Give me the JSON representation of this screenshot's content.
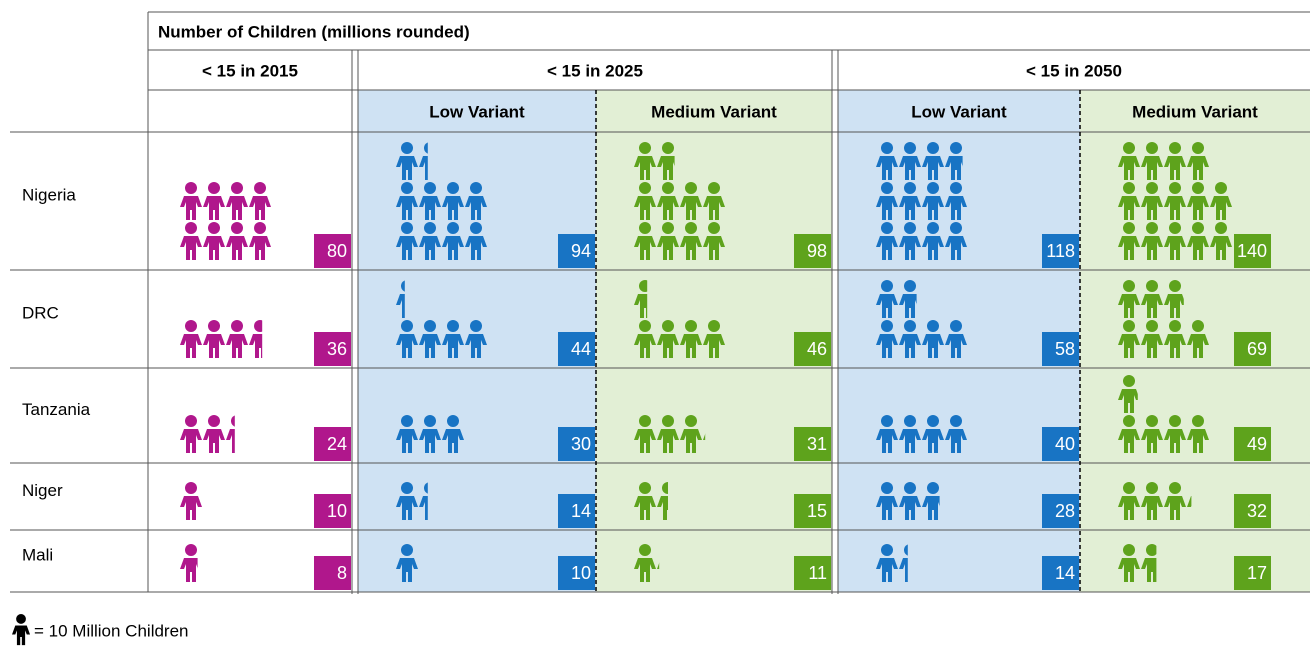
{
  "table": {
    "title": "Number of Children (millions rounded)",
    "groups": [
      "< 15 in 2015",
      "< 15 in 2025",
      "< 15 in 2050"
    ],
    "variants": [
      "Low Variant",
      "Medium Variant",
      "Low Variant",
      "Medium Variant"
    ],
    "icon_colors": [
      "#b0178c",
      "#1874c4",
      "#5ea31c",
      "#1874c4",
      "#5ea31c"
    ],
    "cell_colors": [
      null,
      "#cfe2f3",
      "#e2efd5",
      "#cfe2f3",
      "#e2efd5"
    ],
    "rows": [
      {
        "country": "Nigeria",
        "values": [
          80,
          94,
          98,
          118,
          140
        ]
      },
      {
        "country": "DRC",
        "values": [
          36,
          44,
          46,
          58,
          69
        ]
      },
      {
        "country": "Tanzania",
        "values": [
          24,
          30,
          31,
          40,
          49
        ]
      },
      {
        "country": "Niger",
        "values": [
          10,
          14,
          15,
          28,
          32
        ]
      },
      {
        "country": "Mali",
        "values": [
          8,
          10,
          11,
          14,
          17
        ]
      }
    ]
  },
  "legend": {
    "value": 10,
    "label": "= 10 Million Children"
  }
}
